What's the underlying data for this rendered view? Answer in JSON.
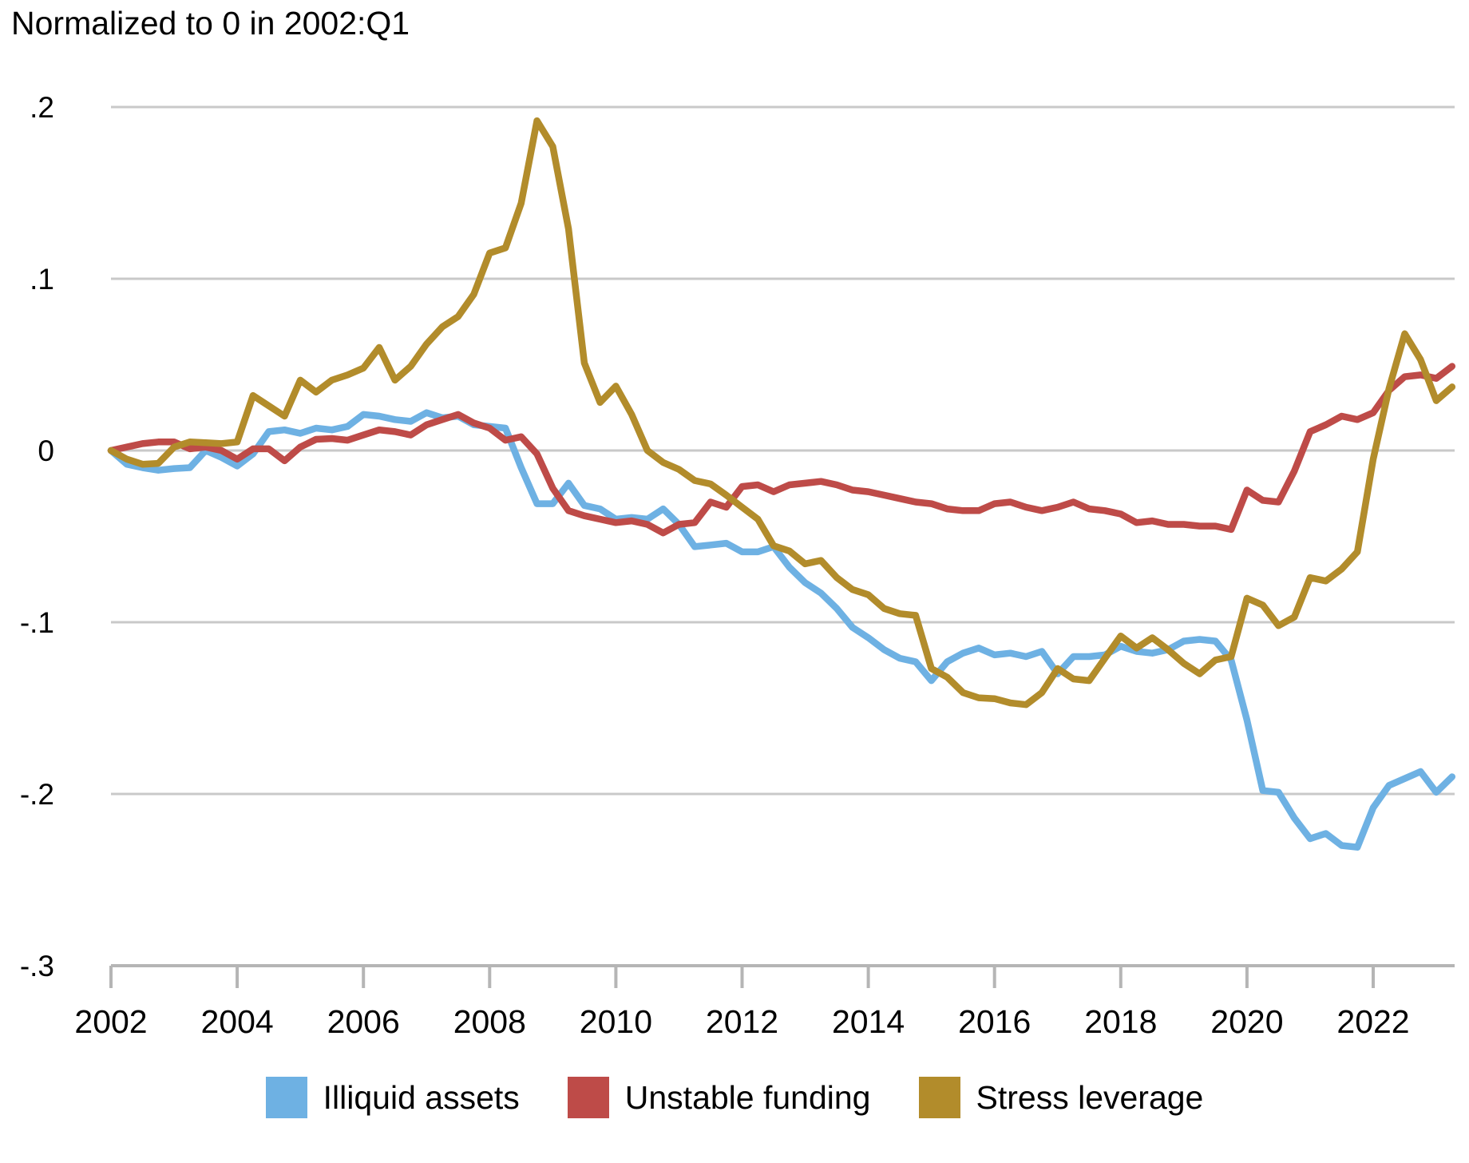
{
  "chart_data": {
    "type": "line",
    "title": "Normalized to 0 in 2002:Q1",
    "xlabel": "",
    "ylabel": "",
    "grid": "horizontal",
    "legend_position": "bottom",
    "ylim": [
      -0.3,
      0.2
    ],
    "xlim": [
      2002.0,
      2023.25
    ],
    "y_ticks": [
      {
        "label": ".2",
        "value": 0.2
      },
      {
        "label": ".1",
        "value": 0.1
      },
      {
        "label": "0",
        "value": 0.0
      },
      {
        "label": "-.1",
        "value": -0.1
      },
      {
        "label": "-.2",
        "value": -0.2
      },
      {
        "label": "-.3",
        "value": -0.3
      }
    ],
    "x_ticks": [
      {
        "label": "2002",
        "value": 2002
      },
      {
        "label": "2004",
        "value": 2004
      },
      {
        "label": "2006",
        "value": 2006
      },
      {
        "label": "2008",
        "value": 2008
      },
      {
        "label": "2010",
        "value": 2010
      },
      {
        "label": "2012",
        "value": 2012
      },
      {
        "label": "2014",
        "value": 2014
      },
      {
        "label": "2016",
        "value": 2016
      },
      {
        "label": "2018",
        "value": 2018
      },
      {
        "label": "2020",
        "value": 2020
      },
      {
        "label": "2022",
        "value": 2022
      }
    ],
    "x": [
      2002.0,
      2002.25,
      2002.5,
      2002.75,
      2003.0,
      2003.25,
      2003.5,
      2003.75,
      2004.0,
      2004.25,
      2004.5,
      2004.75,
      2005.0,
      2005.25,
      2005.5,
      2005.75,
      2006.0,
      2006.25,
      2006.5,
      2006.75,
      2007.0,
      2007.25,
      2007.5,
      2007.75,
      2008.0,
      2008.25,
      2008.5,
      2008.75,
      2009.0,
      2009.25,
      2009.5,
      2009.75,
      2010.0,
      2010.25,
      2010.5,
      2010.75,
      2011.0,
      2011.25,
      2011.5,
      2011.75,
      2012.0,
      2012.25,
      2012.5,
      2012.75,
      2013.0,
      2013.25,
      2013.5,
      2013.75,
      2014.0,
      2014.25,
      2014.5,
      2014.75,
      2015.0,
      2015.25,
      2015.5,
      2015.75,
      2016.0,
      2016.25,
      2016.5,
      2016.75,
      2017.0,
      2017.25,
      2017.5,
      2017.75,
      2018.0,
      2018.25,
      2018.5,
      2018.75,
      2019.0,
      2019.25,
      2019.5,
      2019.75,
      2020.0,
      2020.25,
      2020.5,
      2020.75,
      2021.0,
      2021.25,
      2021.5,
      2021.75,
      2022.0,
      2022.25,
      2022.5,
      2022.75,
      2023.0,
      2023.25
    ],
    "series": [
      {
        "name": "Illiquid assets",
        "color": "#6EB1E3",
        "values": [
          0,
          -0.008,
          -0.01,
          -0.0115,
          -0.0105,
          -0.01,
          0.0,
          -0.004,
          -0.009,
          -0.002,
          0.011,
          0.012,
          0.01,
          0.013,
          0.012,
          0.014,
          0.021,
          0.02,
          0.018,
          0.017,
          0.022,
          0.019,
          0.02,
          0.015,
          0.014,
          0.013,
          -0.01,
          -0.031,
          -0.031,
          -0.019,
          -0.032,
          -0.034,
          -0.04,
          -0.039,
          -0.04,
          -0.034,
          -0.043,
          -0.056,
          -0.055,
          -0.054,
          -0.059,
          -0.059,
          -0.056,
          -0.068,
          -0.077,
          -0.083,
          -0.092,
          -0.103,
          -0.109,
          -0.116,
          -0.121,
          -0.123,
          -0.134,
          -0.123,
          -0.118,
          -0.115,
          -0.119,
          -0.118,
          -0.12,
          -0.117,
          -0.13,
          -0.12,
          -0.12,
          -0.119,
          -0.114,
          -0.117,
          -0.118,
          -0.116,
          -0.111,
          -0.11,
          -0.111,
          -0.122,
          -0.157,
          -0.198,
          -0.199,
          -0.214,
          -0.226,
          -0.223,
          -0.23,
          -0.231,
          -0.208,
          -0.195,
          -0.191,
          -0.187,
          -0.199,
          -0.19
        ]
      },
      {
        "name": "Unstable funding",
        "color": "#BE4B48",
        "values": [
          0,
          0.002,
          0.004,
          0.005,
          0.005,
          0.001,
          0.002,
          0.0,
          -0.005,
          0.001,
          0.001,
          -0.006,
          0.002,
          0.0065,
          0.007,
          0.006,
          0.009,
          0.012,
          0.011,
          0.009,
          0.015,
          0.018,
          0.021,
          0.016,
          0.013,
          0.006,
          0.008,
          -0.002,
          -0.022,
          -0.035,
          -0.038,
          -0.04,
          -0.042,
          -0.041,
          -0.043,
          -0.048,
          -0.043,
          -0.042,
          -0.03,
          -0.033,
          -0.021,
          -0.02,
          -0.024,
          -0.02,
          -0.019,
          -0.018,
          -0.02,
          -0.023,
          -0.024,
          -0.026,
          -0.028,
          -0.03,
          -0.031,
          -0.034,
          -0.035,
          -0.035,
          -0.031,
          -0.03,
          -0.033,
          -0.035,
          -0.033,
          -0.03,
          -0.034,
          -0.035,
          -0.037,
          -0.042,
          -0.041,
          -0.043,
          -0.043,
          -0.044,
          -0.044,
          -0.046,
          -0.023,
          -0.029,
          -0.03,
          -0.012,
          0.011,
          0.015,
          0.02,
          0.018,
          0.022,
          0.035,
          0.043,
          0.044,
          0.042,
          0.049
        ]
      },
      {
        "name": "Stress leverage",
        "color": "#B28C2B",
        "values": [
          0,
          -0.005,
          -0.008,
          -0.0075,
          0.002,
          0.005,
          0.0045,
          0.004,
          0.005,
          0.032,
          0.026,
          0.02,
          0.041,
          0.034,
          0.041,
          0.044,
          0.048,
          0.06,
          0.041,
          0.049,
          0.062,
          0.072,
          0.078,
          0.091,
          0.115,
          0.118,
          0.144,
          0.192,
          0.177,
          0.129,
          0.051,
          0.028,
          0.0375,
          0.021,
          0.0,
          -0.007,
          -0.011,
          -0.0175,
          -0.0195,
          -0.026,
          -0.033,
          -0.04,
          -0.0555,
          -0.0585,
          -0.066,
          -0.064,
          -0.074,
          -0.081,
          -0.084,
          -0.092,
          -0.095,
          -0.096,
          -0.127,
          -0.132,
          -0.141,
          -0.144,
          -0.1445,
          -0.147,
          -0.148,
          -0.141,
          -0.127,
          -0.133,
          -0.134,
          -0.121,
          -0.108,
          -0.115,
          -0.109,
          -0.116,
          -0.124,
          -0.13,
          -0.122,
          -0.12,
          -0.086,
          -0.09,
          -0.102,
          -0.097,
          -0.074,
          -0.076,
          -0.069,
          -0.059,
          -0.005,
          0.036,
          0.068,
          0.053,
          0.029,
          0.037
        ]
      }
    ],
    "style": {
      "gridline_color": "#c9c9c9",
      "axis_color": "#b5b5b5",
      "text_color": "#000000",
      "background": "#ffffff",
      "line_width": 8.5
    }
  }
}
